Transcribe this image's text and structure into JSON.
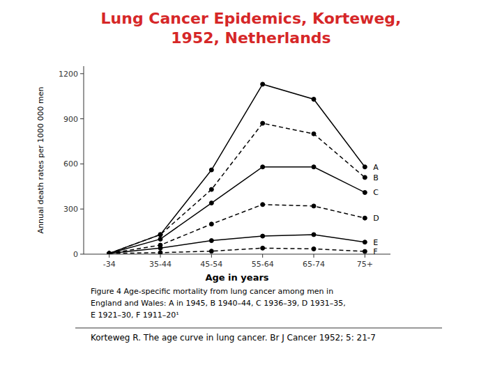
{
  "chart_data": {
    "type": "line",
    "title": "Lung Cancer Epidemics, Korteweg,",
    "subtitle": "1952, Netherlands",
    "x_label": "Age in years",
    "y_label": "Annual death rates per 1000 000 men",
    "categories": [
      "-34",
      "35-44",
      "45-54",
      "55-64",
      "65-74",
      "75+"
    ],
    "series": [
      {
        "name": "A",
        "values": [
          5,
          130,
          560,
          1130,
          1030,
          580
        ],
        "line_style": "solid",
        "marker": "circle",
        "color": "#000000"
      },
      {
        "name": "B",
        "values": [
          5,
          130,
          430,
          870,
          800,
          510
        ],
        "line_style": "dashed",
        "marker": "circle",
        "color": "#000000"
      },
      {
        "name": "C",
        "values": [
          5,
          100,
          340,
          580,
          580,
          410
        ],
        "line_style": "solid",
        "marker": "circle",
        "color": "#000000"
      },
      {
        "name": "D",
        "values": [
          5,
          60,
          200,
          330,
          320,
          240
        ],
        "line_style": "dashed",
        "marker": "circle",
        "color": "#000000"
      },
      {
        "name": "E",
        "values": [
          5,
          40,
          90,
          120,
          130,
          80
        ],
        "line_style": "solid",
        "marker": "circle",
        "color": "#000000"
      },
      {
        "name": "F",
        "values": [
          5,
          10,
          20,
          40,
          35,
          18
        ],
        "line_style": "dashed",
        "marker": "circle",
        "color": "#000000"
      }
    ],
    "ylim": [
      0,
      1250
    ],
    "yticks": [
      0,
      300,
      600,
      900,
      1200
    ],
    "grid": false,
    "annotations": [
      "Figure 4  Age-specific mortality from lung cancer among men in",
      "England and Wales: A in 1945, B 1940–44, C 1936–39, D 1931–35,",
      "E 1921–30, F 1911–20¹",
      "Korteweg R. The age curve in lung cancer. Br J Cancer 1952; 5: 21-7"
    ]
  }
}
